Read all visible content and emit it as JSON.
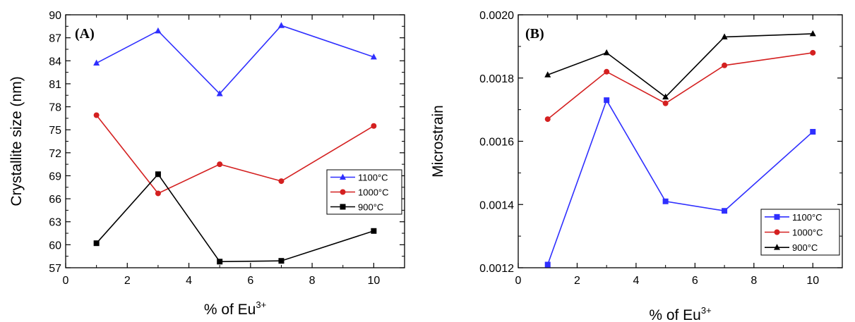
{
  "chart_data": [
    {
      "type": "line",
      "panel_label": "(A)",
      "xlabel": "% of Eu",
      "xlabel_sup": "3+",
      "ylabel": "Crystallite size (nm)",
      "xlim": [
        0,
        11
      ],
      "ylim": [
        57,
        90
      ],
      "xticks": [
        "0",
        "2",
        "4",
        "6",
        "8",
        "10"
      ],
      "yticks": [
        "57",
        "60",
        "63",
        "66",
        "69",
        "72",
        "75",
        "78",
        "81",
        "84",
        "87",
        "90"
      ],
      "x": [
        1,
        3,
        5,
        7,
        10
      ],
      "legend_position": "center-right",
      "series": [
        {
          "name": "1100°C",
          "color": "#2f2fff",
          "marker": "triangle",
          "values": [
            83.7,
            87.9,
            79.7,
            88.6,
            84.5
          ]
        },
        {
          "name": "1000°C",
          "color": "#d42020",
          "marker": "circle",
          "values": [
            76.9,
            66.7,
            70.5,
            68.3,
            75.5
          ]
        },
        {
          "name": "900°C",
          "color": "#000000",
          "marker": "square",
          "values": [
            60.2,
            69.2,
            57.8,
            57.9,
            61.8
          ]
        }
      ]
    },
    {
      "type": "line",
      "panel_label": "(B)",
      "xlabel": "% of Eu",
      "xlabel_sup": "3+",
      "ylabel": "Microstrain",
      "xlim": [
        0,
        11
      ],
      "ylim": [
        0.0012,
        0.002
      ],
      "xticks": [
        "0",
        "2",
        "4",
        "6",
        "8",
        "10"
      ],
      "yticks": [
        "0.0012",
        "0.0014",
        "0.0016",
        "0.0018",
        "0.0020"
      ],
      "x": [
        1,
        3,
        5,
        7,
        10
      ],
      "legend_position": "bottom-right",
      "series": [
        {
          "name": "1100°C",
          "color": "#2f2fff",
          "marker": "square",
          "values": [
            0.00121,
            0.00173,
            0.00141,
            0.00138,
            0.00163
          ]
        },
        {
          "name": "1000°C",
          "color": "#d42020",
          "marker": "circle",
          "values": [
            0.00167,
            0.00182,
            0.00172,
            0.00184,
            0.00188
          ]
        },
        {
          "name": "900°C",
          "color": "#000000",
          "marker": "triangle",
          "values": [
            0.00181,
            0.00188,
            0.00174,
            0.00193,
            0.00194
          ]
        }
      ]
    }
  ]
}
